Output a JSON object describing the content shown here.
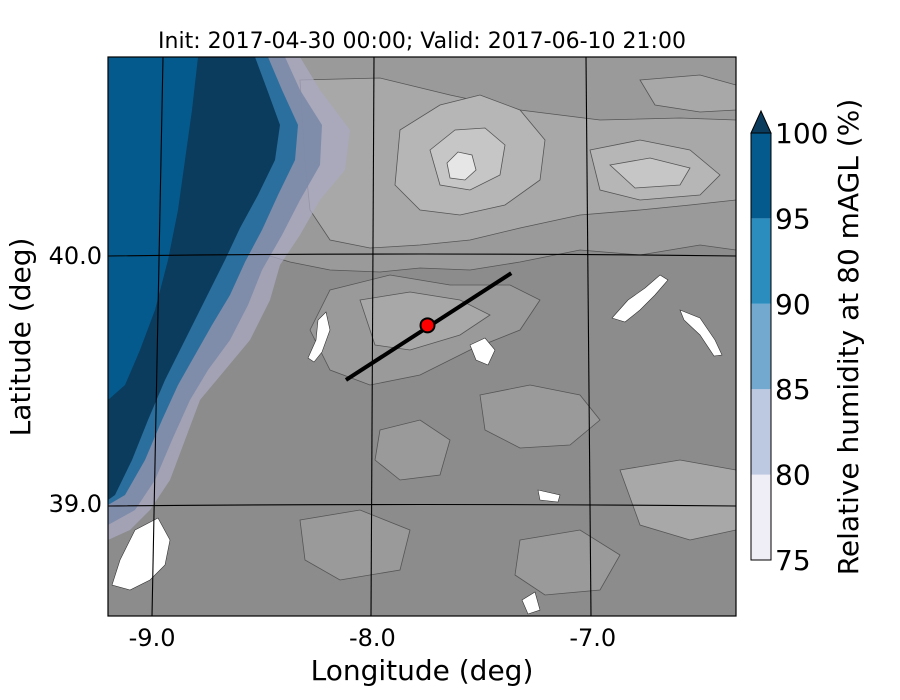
{
  "chart_data": {
    "type": "heatmap",
    "title": "Init: 2017-04-30 00:00; Valid: 2017-06-10 21:00",
    "xlabel": "Longitude (deg)",
    "ylabel": "Latitude (deg)",
    "xlim": [
      -9.2,
      -6.35
    ],
    "ylim": [
      38.55,
      40.8
    ],
    "x_ticks": [
      {
        "value": -9.0,
        "label": "-9.0"
      },
      {
        "value": -8.0,
        "label": "-8.0"
      },
      {
        "value": -7.0,
        "label": "-7.0"
      }
    ],
    "y_ticks": [
      {
        "value": 40.0,
        "label": "40.0"
      },
      {
        "value": 39.0,
        "label": "39.0"
      }
    ],
    "grid": true,
    "colorbar": {
      "label": "Relative humidity at 80 mAGL (%)",
      "levels": [
        75,
        80,
        85,
        90,
        95,
        100
      ],
      "tick_labels": [
        "75",
        "80",
        "85",
        "90",
        "95",
        "100"
      ],
      "colors": [
        "#efedf5",
        "#bdc9e1",
        "#74a9cf",
        "#2b8cbe",
        "#045a8d"
      ],
      "extend": "max",
      "extend_color": "#0b3c5d"
    },
    "terrain_shades": [
      "#8c8c8c",
      "#9a9a9a",
      "#a8a8a8",
      "#b6b6b6",
      "#c6c6c6",
      "#d8d8d8",
      "#ececec"
    ],
    "cross_section": {
      "start": {
        "lon": -8.12,
        "lat": 39.5
      },
      "end": {
        "lon": -7.37,
        "lat": 39.93
      },
      "color": "#000000"
    },
    "marker": {
      "lon": -7.75,
      "lat": 39.72,
      "color": "#ff0000"
    }
  }
}
